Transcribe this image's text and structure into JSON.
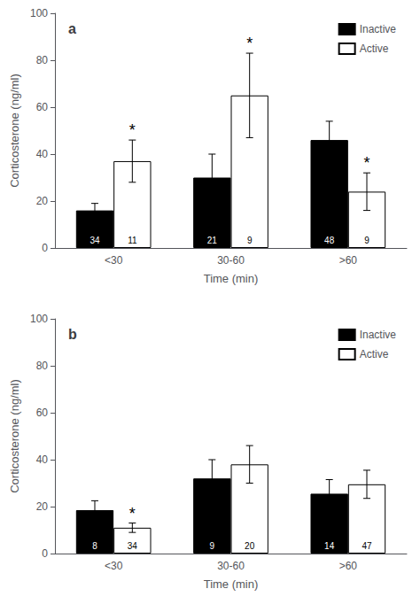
{
  "chart_data": [
    {
      "type": "bar",
      "title": "a",
      "categories": [
        "<30",
        "30-60",
        ">60"
      ],
      "series": [
        {
          "name": "Inactive",
          "color": "#000000",
          "values": [
            16,
            30,
            46
          ],
          "errors": [
            3,
            10,
            8
          ],
          "n": [
            34,
            21,
            48
          ],
          "significance": [
            null,
            null,
            null
          ]
        },
        {
          "name": "Active",
          "color": "#ffffff",
          "values": [
            37,
            65,
            24
          ],
          "errors": [
            9,
            18,
            8
          ],
          "n": [
            11,
            9,
            9
          ],
          "significance": [
            "*",
            "*",
            "*"
          ]
        }
      ],
      "xlabel": "Time (min)",
      "ylabel": "Corticosterone (ng/ml)",
      "ylim": [
        0,
        100
      ],
      "yticks": [
        0,
        20,
        40,
        60,
        80,
        100
      ],
      "grid": false,
      "legend": "upper right"
    },
    {
      "type": "bar",
      "title": "b",
      "categories": [
        "<30",
        "30-60",
        ">60"
      ],
      "series": [
        {
          "name": "Inactive",
          "color": "#000000",
          "values": [
            18.5,
            32,
            25.5
          ],
          "errors": [
            4,
            8,
            6
          ],
          "n": [
            8,
            9,
            14
          ],
          "significance": [
            null,
            null,
            null
          ]
        },
        {
          "name": "Active",
          "color": "#ffffff",
          "values": [
            11,
            38,
            29.5
          ],
          "errors": [
            2,
            8,
            6
          ],
          "n": [
            34,
            20,
            47
          ],
          "significance": [
            "*",
            null,
            null
          ]
        }
      ],
      "xlabel": "Time (min)",
      "ylabel": "Corticosterone (ng/ml)",
      "ylim": [
        0,
        100
      ],
      "yticks": [
        0,
        20,
        40,
        60,
        80,
        100
      ],
      "grid": false,
      "legend": "upper right"
    }
  ]
}
